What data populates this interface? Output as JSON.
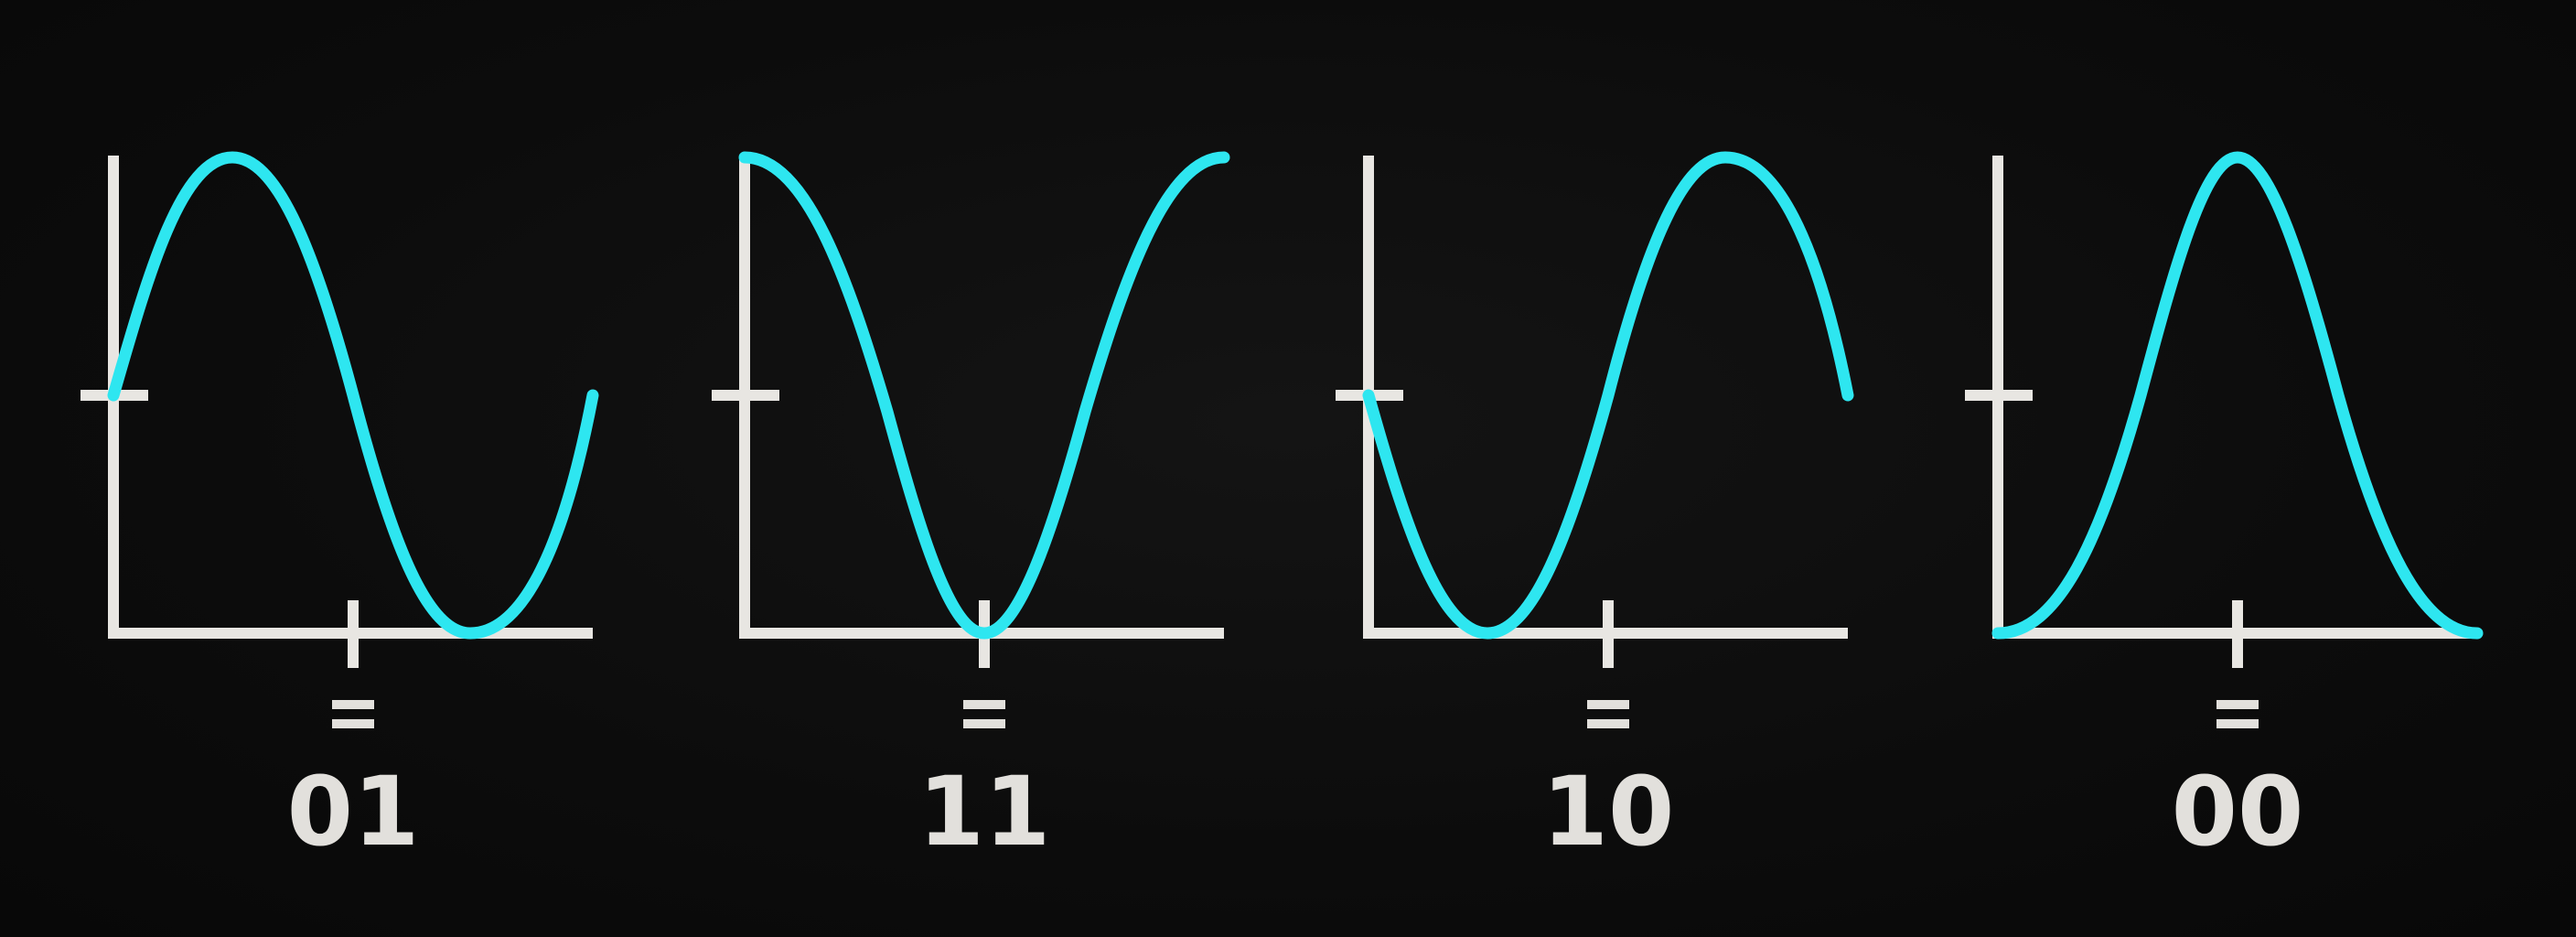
{
  "title": "",
  "colors": {
    "background": "#0b0b0b",
    "axis": "#e8e6e2",
    "wave": "#2ee6f0",
    "text": "#e2e0dc"
  },
  "panels": [
    {
      "code": "01",
      "equals_sign": "=",
      "phase": "sine-up",
      "phase_deg": 0
    },
    {
      "code": "11",
      "equals_sign": "=",
      "phase": "cosine-down",
      "phase_deg": 90
    },
    {
      "code": "10",
      "equals_sign": "=",
      "phase": "sine-down",
      "phase_deg": 180
    },
    {
      "code": "00",
      "equals_sign": "=",
      "phase": "cosine-up",
      "phase_deg": 270
    }
  ]
}
